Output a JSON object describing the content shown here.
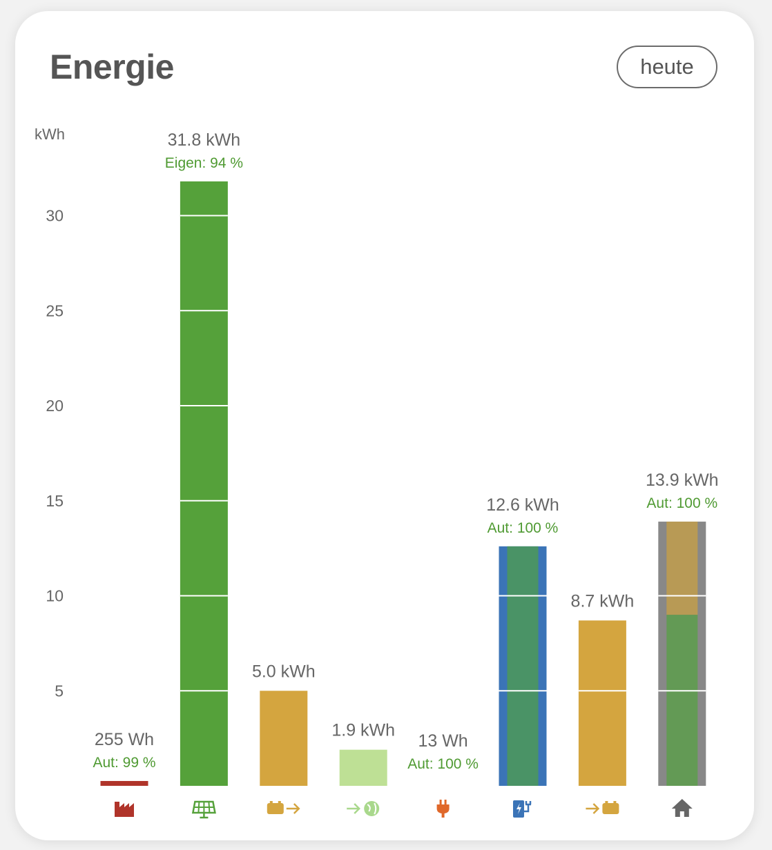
{
  "card": {
    "title": "Energie",
    "period_button": "heute"
  },
  "colors": {
    "text": "#666666",
    "accent_green_text": "#4f9a32",
    "grid": "#ffffff"
  },
  "chart_data": {
    "type": "bar",
    "ylabel": "kWh",
    "ylim": [
      0,
      31.8
    ],
    "yticks": [
      5,
      10,
      15,
      20,
      25,
      30
    ],
    "grid": true,
    "bars": [
      {
        "icon": "factory-icon",
        "icon_color": "#b0342a",
        "value": 0.255,
        "label": "255 Wh",
        "sublabel": "Aut: 99 %",
        "segments": [
          {
            "value": 0.255,
            "color": "#b0342a"
          }
        ]
      },
      {
        "icon": "solar-panel-icon",
        "icon_color": "#55a13a",
        "value": 31.8,
        "label": "31.8 kWh",
        "sublabel": "Eigen: 94 %",
        "segments": [
          {
            "value": 31.8,
            "color": "#55a13a"
          }
        ]
      },
      {
        "icon": "battery-discharge-icon",
        "icon_color": "#d4a53f",
        "value": 5.0,
        "label": "5.0 kWh",
        "sublabel": "",
        "segments": [
          {
            "value": 5.0,
            "color": "#d4a53f"
          }
        ]
      },
      {
        "icon": "grid-export-icon",
        "icon_color": "#a9d88c",
        "value": 1.9,
        "label": "1.9 kWh",
        "sublabel": "",
        "segments": [
          {
            "value": 1.9,
            "color": "#bee095"
          }
        ]
      },
      {
        "icon": "plug-icon",
        "icon_color": "#e0682a",
        "value": 0.013,
        "label": "13 Wh",
        "sublabel": "Aut: 100 %",
        "segments": []
      },
      {
        "icon": "ev-charger-icon",
        "icon_color": "#3b74b7",
        "value": 12.6,
        "label": "12.6 kWh",
        "sublabel": "Aut: 100 %",
        "border_color": "#3b74b7",
        "segments": [
          {
            "value": 12.6,
            "color": "#4a9366"
          }
        ]
      },
      {
        "icon": "battery-charge-icon",
        "icon_color": "#d4a53f",
        "value": 8.7,
        "label": "8.7 kWh",
        "sublabel": "",
        "segments": [
          {
            "value": 8.7,
            "color": "#d4a53f"
          }
        ]
      },
      {
        "icon": "home-icon",
        "icon_color": "#666666",
        "value": 13.9,
        "label": "13.9 kWh",
        "sublabel": "Aut: 100 %",
        "border_color": "#888888",
        "segments": [
          {
            "value": 9.0,
            "color": "#639a55"
          },
          {
            "value": 4.9,
            "color": "#b89a55"
          }
        ]
      }
    ]
  }
}
